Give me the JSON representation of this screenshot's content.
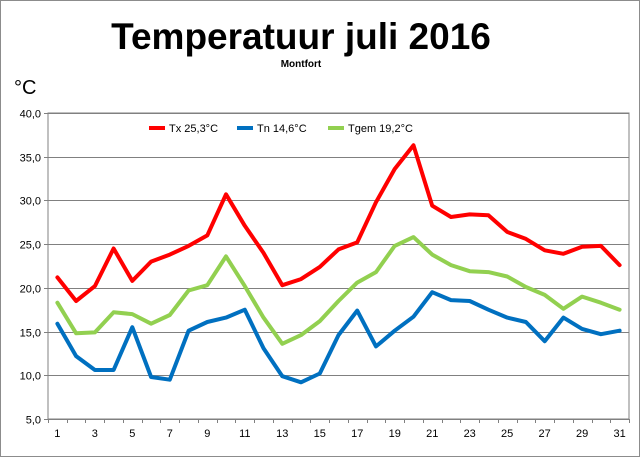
{
  "chart_data": {
    "type": "line",
    "title": "Temperatuur juli 2016",
    "subtitle": "Montfort",
    "ylabel": "°C",
    "xlabel": "",
    "ylim": [
      5,
      40
    ],
    "ytick_labels": [
      "5,0",
      "10,0",
      "15,0",
      "20,0",
      "25,0",
      "30,0",
      "35,0",
      "40,0"
    ],
    "ytick_values": [
      5,
      10,
      15,
      20,
      25,
      30,
      35,
      40
    ],
    "x": [
      1,
      2,
      3,
      4,
      5,
      6,
      7,
      8,
      9,
      10,
      11,
      12,
      13,
      14,
      15,
      16,
      17,
      18,
      19,
      20,
      21,
      22,
      23,
      24,
      25,
      26,
      27,
      28,
      29,
      30,
      31
    ],
    "xtick_labels": [
      "1",
      "3",
      "5",
      "7",
      "9",
      "11",
      "13",
      "15",
      "17",
      "19",
      "21",
      "23",
      "25",
      "27",
      "29",
      "31"
    ],
    "xtick_values": [
      1,
      3,
      5,
      7,
      9,
      11,
      13,
      15,
      17,
      19,
      21,
      23,
      25,
      27,
      29,
      31
    ],
    "grid": true,
    "legend_position": "top",
    "series": [
      {
        "name": "Tx 25,3°C",
        "color": "#ff0000",
        "values": [
          21.2,
          18.5,
          20.2,
          24.5,
          20.8,
          23.0,
          23.8,
          24.8,
          26.0,
          30.7,
          27.1,
          24.0,
          20.3,
          21.0,
          22.4,
          24.4,
          25.2,
          29.8,
          33.6,
          36.3,
          29.4,
          28.1,
          28.4,
          28.3,
          26.4,
          25.6,
          24.3,
          23.9,
          24.7,
          24.8,
          22.6
        ]
      },
      {
        "name": "Tn 14,6°C",
        "color": "#0070c0",
        "values": [
          15.9,
          12.2,
          10.6,
          10.6,
          15.5,
          9.8,
          9.5,
          15.1,
          16.1,
          16.6,
          17.5,
          13.1,
          9.9,
          9.2,
          10.2,
          14.6,
          17.4,
          13.3,
          15.1,
          16.7,
          19.5,
          18.6,
          18.5,
          17.5,
          16.6,
          16.1,
          13.9,
          16.6,
          15.3,
          14.7,
          15.1
        ]
      },
      {
        "name": "Tgem 19,2°C",
        "color": "#92d050",
        "values": [
          18.3,
          14.8,
          14.9,
          17.2,
          17.0,
          15.9,
          16.9,
          19.7,
          20.3,
          23.6,
          20.2,
          16.6,
          13.6,
          14.6,
          16.2,
          18.5,
          20.6,
          21.8,
          24.8,
          25.8,
          23.8,
          22.6,
          21.9,
          21.8,
          21.3,
          20.1,
          19.2,
          17.6,
          19.0,
          18.3,
          17.5
        ]
      }
    ]
  }
}
